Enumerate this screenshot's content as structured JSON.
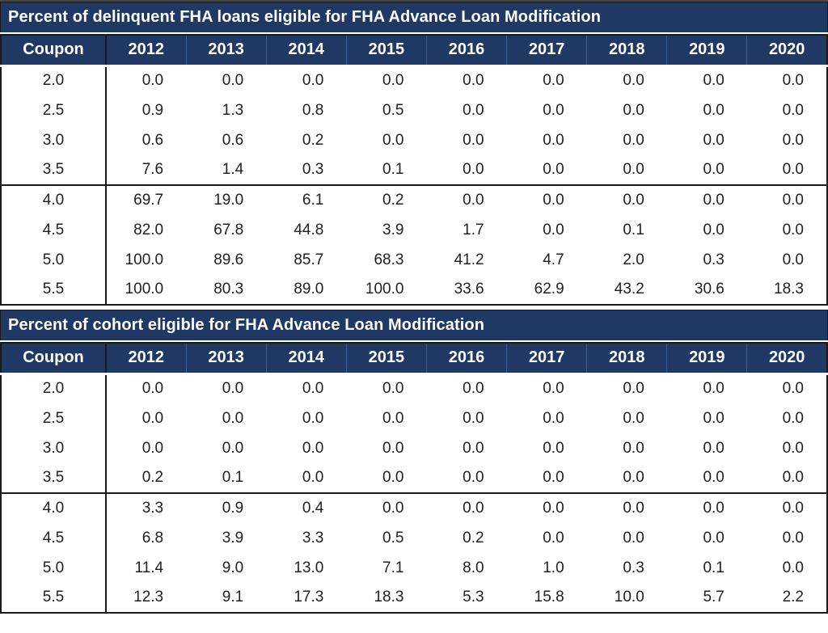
{
  "colors": {
    "navy_header": "#1F3864",
    "header_divider": "#3A5F9B",
    "border_dark": "#1a1a1a",
    "data_text": "#212121",
    "header_text": "#ffffff"
  },
  "chart_data": [
    {
      "type": "table",
      "title": "Percent of delinquent FHA loans eligible for FHA Advance Loan Modification",
      "columns": [
        "Coupon",
        "2012",
        "2013",
        "2014",
        "2015",
        "2016",
        "2017",
        "2018",
        "2019",
        "2020"
      ],
      "rows": [
        [
          "2.0",
          "0.0",
          "0.0",
          "0.0",
          "0.0",
          "0.0",
          "0.0",
          "0.0",
          "0.0",
          "0.0"
        ],
        [
          "2.5",
          "0.9",
          "1.3",
          "0.8",
          "0.5",
          "0.0",
          "0.0",
          "0.0",
          "0.0",
          "0.0"
        ],
        [
          "3.0",
          "0.6",
          "0.6",
          "0.2",
          "0.0",
          "0.0",
          "0.0",
          "0.0",
          "0.0",
          "0.0"
        ],
        [
          "3.5",
          "7.6",
          "1.4",
          "0.3",
          "0.1",
          "0.0",
          "0.0",
          "0.0",
          "0.0",
          "0.0"
        ],
        [
          "4.0",
          "69.7",
          "19.0",
          "6.1",
          "0.2",
          "0.0",
          "0.0",
          "0.0",
          "0.0",
          "0.0"
        ],
        [
          "4.5",
          "82.0",
          "67.8",
          "44.8",
          "3.9",
          "1.7",
          "0.0",
          "0.1",
          "0.0",
          "0.0"
        ],
        [
          "5.0",
          "100.0",
          "89.6",
          "85.7",
          "68.3",
          "41.2",
          "4.7",
          "2.0",
          "0.3",
          "0.0"
        ],
        [
          "5.5",
          "100.0",
          "80.3",
          "89.0",
          "100.0",
          "33.6",
          "62.9",
          "43.2",
          "30.6",
          "18.3"
        ]
      ],
      "group_break_row_index": 4,
      "layout": {
        "grid": false,
        "first_column_label": "Coupon",
        "value_unit": "percent"
      }
    },
    {
      "type": "table",
      "title": "Percent of cohort eligible for FHA Advance Loan Modification",
      "columns": [
        "Coupon",
        "2012",
        "2013",
        "2014",
        "2015",
        "2016",
        "2017",
        "2018",
        "2019",
        "2020"
      ],
      "rows": [
        [
          "2.0",
          "0.0",
          "0.0",
          "0.0",
          "0.0",
          "0.0",
          "0.0",
          "0.0",
          "0.0",
          "0.0"
        ],
        [
          "2.5",
          "0.0",
          "0.0",
          "0.0",
          "0.0",
          "0.0",
          "0.0",
          "0.0",
          "0.0",
          "0.0"
        ],
        [
          "3.0",
          "0.0",
          "0.0",
          "0.0",
          "0.0",
          "0.0",
          "0.0",
          "0.0",
          "0.0",
          "0.0"
        ],
        [
          "3.5",
          "0.2",
          "0.1",
          "0.0",
          "0.0",
          "0.0",
          "0.0",
          "0.0",
          "0.0",
          "0.0"
        ],
        [
          "4.0",
          "3.3",
          "0.9",
          "0.4",
          "0.0",
          "0.0",
          "0.0",
          "0.0",
          "0.0",
          "0.0"
        ],
        [
          "4.5",
          "6.8",
          "3.9",
          "3.3",
          "0.5",
          "0.2",
          "0.0",
          "0.0",
          "0.0",
          "0.0"
        ],
        [
          "5.0",
          "11.4",
          "9.0",
          "13.0",
          "7.1",
          "8.0",
          "1.0",
          "0.3",
          "0.1",
          "0.0"
        ],
        [
          "5.5",
          "12.3",
          "9.1",
          "17.3",
          "18.3",
          "5.3",
          "15.8",
          "10.0",
          "5.7",
          "2.2"
        ]
      ],
      "group_break_row_index": 4,
      "layout": {
        "grid": false,
        "first_column_label": "Coupon",
        "value_unit": "percent"
      }
    }
  ]
}
